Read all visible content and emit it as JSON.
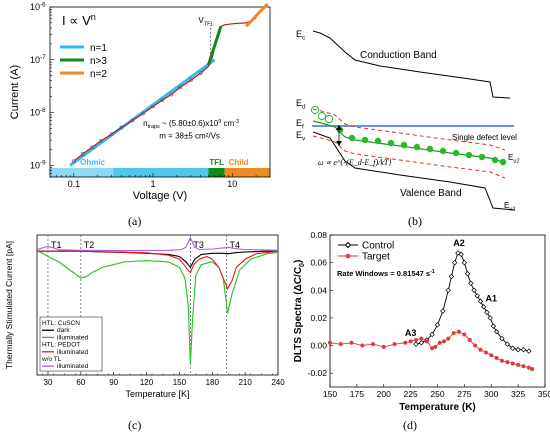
{
  "panels": {
    "a": {
      "label": "(a)"
    },
    "b": {
      "label": "(b)"
    },
    "c": {
      "label": "(c)"
    },
    "d": {
      "label": "(d)"
    }
  },
  "chart_data": [
    {
      "id": "a",
      "type": "line",
      "xscale": "log",
      "yscale": "log",
      "xlabel": "Voltage (V)",
      "ylabel": "Current (A)",
      "xlim": [
        0.05,
        30
      ],
      "ylim": [
        6e-10,
        1e-06
      ],
      "xticks": [
        {
          "v": 0.1,
          "t": "0.1"
        },
        {
          "v": 1,
          "t": "1"
        },
        {
          "v": 10,
          "t": "10"
        }
      ],
      "yticks": [
        {
          "v": 1e-09,
          "t": "10",
          "sup": "-9"
        },
        {
          "v": 1e-08,
          "t": "10",
          "sup": "-8"
        },
        {
          "v": 1e-07,
          "t": "10",
          "sup": "-7"
        },
        {
          "v": 1e-06,
          "t": "10",
          "sup": "-6"
        }
      ],
      "title_text": {
        "base": "I ∝ V",
        "sup": "n"
      },
      "vtfl_text": {
        "base": "V",
        "sub": "TFL"
      },
      "legend": [
        {
          "name": "n=1",
          "color": "#33bde8"
        },
        {
          "name": "n>3",
          "color": "#0f8a1f"
        },
        {
          "name": "n=2",
          "color": "#f08a24"
        }
      ],
      "measured": {
        "color": "#cc1111",
        "x": [
          0.1,
          0.13,
          0.17,
          0.22,
          0.3,
          0.4,
          0.55,
          0.75,
          1.0,
          1.3,
          1.7,
          2.2,
          3.0,
          4.0,
          5.0,
          5.6,
          6.0,
          6.5,
          7.0,
          8.0,
          10,
          12,
          15,
          18,
          20
        ],
        "y": [
          1.2e-09,
          1.65e-09,
          2.2e-09,
          2.9e-09,
          3.9e-09,
          5.2e-09,
          7.1e-09,
          9.6e-09,
          1.3e-08,
          1.7e-08,
          2.2e-08,
          3e-08,
          4.1e-08,
          5.6e-08,
          7.5e-08,
          1.1e-07,
          1.8e-07,
          3e-07,
          4.2e-07,
          4.6e-07,
          4.8e-07,
          4.9e-07,
          5e-07,
          5.6e-07,
          6.2e-07
        ]
      },
      "fit_n1": {
        "color": "#33bde8",
        "x": [
          0.09,
          6.0
        ],
        "y": [
          1e-09,
          1e-07
        ]
      },
      "fit_n3": {
        "color": "#0f8a1f",
        "x": [
          5.0,
          7.2
        ],
        "y": [
          8e-08,
          4.3e-07
        ]
      },
      "fit_n2": {
        "color": "#f08a24",
        "x": [
          15,
          28
        ],
        "y": [
          4.3e-07,
          1.15e-06
        ]
      },
      "vtfl_v": 5.3,
      "annotation_traps": {
        "prefix": "n",
        "sub": "traps",
        "value": "~ (5.80±0.6)x10",
        "exp": "9",
        "unit": " cm",
        "unit_exp": "-3"
      },
      "annotation_mobility": "m = 38±5 cm²/Vs",
      "regions": [
        {
          "name": "Ohmic",
          "color": "#33bde8",
          "range": [
            0.05,
            5.0
          ]
        },
        {
          "name": "TFL",
          "color": "#0f8a1f",
          "range": [
            5.0,
            8.0
          ]
        },
        {
          "name": "Child",
          "color": "#f08a24",
          "range": [
            8.0,
            30
          ]
        }
      ]
    },
    {
      "id": "b",
      "type": "diagram",
      "labels": {
        "ec": {
          "base": "E",
          "sub": "c"
        },
        "ed": {
          "base": "E",
          "sub": "d"
        },
        "ef": {
          "base": "E",
          "sub": "f"
        },
        "ev": {
          "base": "E",
          "sub": "v"
        },
        "eu2": {
          "base": "E",
          "sub": "u2"
        },
        "eu1": {
          "base": "E",
          "sub": "u1"
        },
        "conduction": "Conduction Band",
        "valence": "Valence Band",
        "single_defect": "Single defect level",
        "formula": "ω ∝ e^{-(E_d-E_f)/kT}"
      }
    },
    {
      "id": "c",
      "type": "line",
      "xlabel": "Temperature [K]",
      "ylabel": "Thermally Stimulated Current [pA]",
      "xlim": [
        20,
        240
      ],
      "ylim": [
        -46,
        6
      ],
      "xticks": [
        30,
        60,
        90,
        120,
        150,
        180,
        210,
        240
      ],
      "markers": [
        {
          "name": "T1",
          "t": 30
        },
        {
          "name": "T2",
          "t": 60
        },
        {
          "name": "T3",
          "t": 160
        },
        {
          "name": "T4",
          "t": 193
        }
      ],
      "legend": [
        {
          "name": "HTL: CuSCN",
          "kind": "header"
        },
        {
          "name": "dark",
          "color": "#000000"
        },
        {
          "name": "illuminated",
          "color": "#22c322"
        },
        {
          "name": "HTL: PEDOT",
          "kind": "header"
        },
        {
          "name": "illuminated",
          "color": "#e41a1a"
        },
        {
          "name": "w/o TL",
          "kind": "header"
        },
        {
          "name": "illuminated",
          "color": "#b25bd6"
        }
      ],
      "series": [
        {
          "name": "dark",
          "color": "#000000",
          "x": [
            20,
            40,
            60,
            80,
            100,
            120,
            140,
            150,
            156,
            160,
            164,
            170,
            180,
            190,
            194,
            200,
            210,
            230,
            240
          ],
          "y": [
            0,
            0,
            0,
            -0.3,
            -0.5,
            -0.8,
            -1.2,
            -2,
            -4,
            -6,
            -3,
            -1.2,
            -0.8,
            -0.8,
            -1.0,
            -0.6,
            -0.3,
            0,
            0
          ]
        },
        {
          "name": "illuminated",
          "color": "#22c322",
          "x": [
            20,
            24,
            30,
            40,
            50,
            55,
            60,
            65,
            70,
            80,
            100,
            120,
            140,
            150,
            155,
            158,
            160,
            162,
            165,
            170,
            180,
            186,
            190,
            194,
            198,
            205,
            215,
            230,
            240
          ],
          "y": [
            0,
            -0.5,
            -2,
            -4,
            -7,
            -8.5,
            -10,
            -9.5,
            -8,
            -6,
            -4,
            -3.5,
            -4,
            -6,
            -10,
            -20,
            -42,
            -25,
            -9,
            -5,
            -4,
            -6,
            -10,
            -23,
            -16,
            -7,
            -3,
            -1,
            -0.5
          ]
        },
        {
          "name": "illuminated",
          "color": "#e41a1a",
          "x": [
            20,
            40,
            60,
            80,
            100,
            120,
            140,
            150,
            156,
            160,
            163,
            168,
            175,
            180,
            186,
            190,
            194,
            198,
            202,
            210,
            220,
            240
          ],
          "y": [
            0,
            0,
            0,
            -0.2,
            -0.4,
            -0.6,
            -1.5,
            -3,
            -6,
            -8,
            -5,
            -3,
            -2,
            -3,
            -6,
            -10,
            -14,
            -11,
            -6,
            -3,
            -1,
            0
          ]
        },
        {
          "name": "illuminated",
          "color": "#b25bd6",
          "x": [
            20,
            25,
            30,
            35,
            40,
            60,
            100,
            140,
            152,
            156,
            160,
            164,
            168,
            180,
            190,
            195,
            200,
            210,
            240
          ],
          "y": [
            0.5,
            1.2,
            1.8,
            1.2,
            0.5,
            0.3,
            0.2,
            0.3,
            0.6,
            1.5,
            5.0,
            1.5,
            0.6,
            0.8,
            1.2,
            1.4,
            1.0,
            0.6,
            0.3
          ]
        }
      ]
    },
    {
      "id": "d",
      "type": "scatter",
      "xlabel": "Temperature (K)",
      "ylabel": {
        "base": "DLTS Spectra  (ΔC/C",
        "sub": "0",
        "tail": ")"
      },
      "xlim": [
        150,
        350
      ],
      "ylim": [
        -0.03,
        0.08
      ],
      "xticks": [
        150,
        175,
        200,
        225,
        250,
        275,
        300,
        325,
        350
      ],
      "yticks": [
        -0.02,
        0.0,
        0.02,
        0.04,
        0.06,
        0.08
      ],
      "ytick_labels": [
        "-0.02",
        "0.00",
        "0.02",
        "0.04",
        "0.06",
        "0.08"
      ],
      "rate_window": {
        "base": "Rate Windows = 0.81547 s",
        "sup": "-1"
      },
      "legend": [
        {
          "name": "Control",
          "color": "#000000"
        },
        {
          "name": "Target",
          "color": "#e23a3a"
        }
      ],
      "annotations": [
        {
          "text": "A1",
          "x": 300,
          "y": 0.032
        },
        {
          "text": "A2",
          "x": 270,
          "y": 0.072
        },
        {
          "text": "A3",
          "x": 225,
          "y": 0.007
        }
      ],
      "series": [
        {
          "name": "Control",
          "color": "#000000",
          "x": [
            230,
            235,
            240,
            245,
            250,
            255,
            260,
            263,
            266,
            269,
            272,
            275,
            278,
            281,
            284,
            287,
            290,
            293,
            296,
            299,
            302,
            305,
            310,
            315,
            320,
            325,
            330,
            335
          ],
          "y": [
            0.001,
            0.002,
            0.004,
            0.008,
            0.015,
            0.025,
            0.04,
            0.05,
            0.06,
            0.067,
            0.066,
            0.06,
            0.052,
            0.045,
            0.04,
            0.036,
            0.032,
            0.028,
            0.024,
            0.02,
            0.014,
            0.01,
            0.005,
            0.001,
            -0.002,
            -0.003,
            -0.003,
            -0.004
          ]
        },
        {
          "name": "Target",
          "color": "#e23a3a",
          "x": [
            150,
            160,
            170,
            180,
            190,
            200,
            210,
            220,
            225,
            230,
            235,
            240,
            245,
            248,
            252,
            256,
            260,
            265,
            270,
            275,
            280,
            285,
            290,
            295,
            300,
            305,
            310,
            315,
            320,
            325,
            330,
            335,
            338
          ],
          "y": [
            0.002,
            0.001,
            0.002,
            0.0,
            0.001,
            -0.001,
            0.001,
            0.002,
            0.003,
            0.004,
            0.005,
            0.003,
            -0.002,
            -0.001,
            0.002,
            0.003,
            0.005,
            0.009,
            0.01,
            0.008,
            0.004,
            0.0,
            -0.003,
            -0.005,
            -0.007,
            -0.009,
            -0.011,
            -0.012,
            -0.013,
            -0.014,
            -0.015,
            -0.016,
            -0.017
          ]
        }
      ]
    }
  ]
}
